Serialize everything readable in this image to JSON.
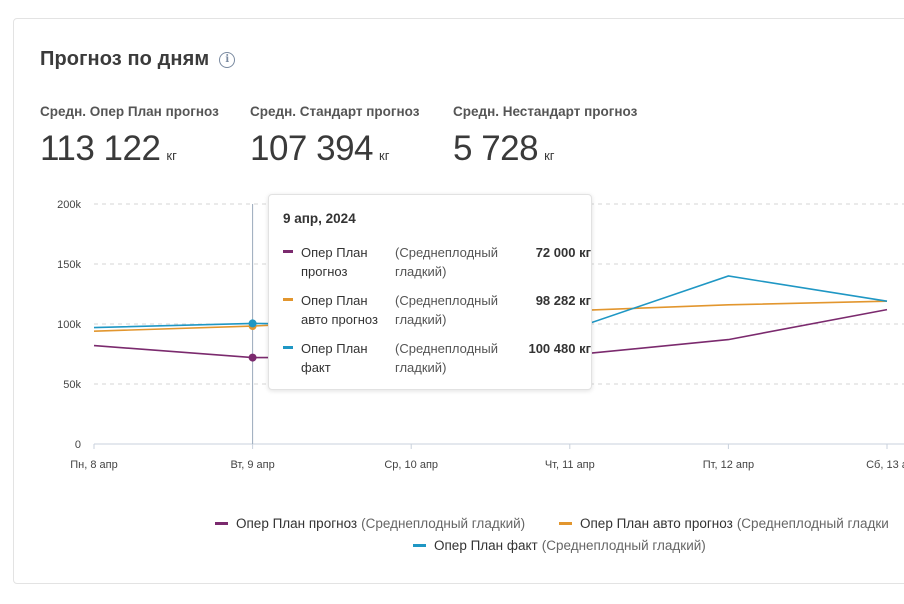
{
  "header": {
    "title": "Прогноз по дням",
    "info_icon": "info-icon"
  },
  "kpis": [
    {
      "label": "Средн. Опер План прогноз",
      "value": "113 122",
      "unit": "кг"
    },
    {
      "label": "Средн. Стандарт прогноз",
      "value": "107 394",
      "unit": "кг"
    },
    {
      "label": "Средн. Нестандарт прогноз",
      "value": "5 728",
      "unit": "кг"
    }
  ],
  "tooltip": {
    "date": "9 апр, 2024",
    "rows": [
      {
        "name": "Опер План прогноз",
        "sub": "(Среднеплодный гладкий)",
        "value": "72 000 кг",
        "color": "#7b2a6e"
      },
      {
        "name": "Опер План авто прогноз",
        "sub": "(Среднеплодный гладкий)",
        "value": "98 282 кг",
        "color": "#e2962e"
      },
      {
        "name": "Опер План факт",
        "sub": "(Среднеплодный гладкий)",
        "value": "100 480 кг",
        "color": "#1f97c4"
      }
    ]
  },
  "legend": [
    {
      "name": "Опер План прогноз",
      "sub": "(Среднеплодный гладкий)",
      "color": "#7b2a6e"
    },
    {
      "name": "Опер План авто прогноз",
      "sub": "(Среднеплодный гладки",
      "color": "#e2962e"
    },
    {
      "name": "Опер План факт",
      "sub": "(Среднеплодный гладкий)",
      "color": "#1f97c4"
    }
  ],
  "chart_data": {
    "type": "line",
    "categories": [
      "Пн, 8 апр",
      "Вт, 9 апр",
      "Ср, 10 апр",
      "Чт, 11 апр",
      "Пт, 12 апр",
      "Сб, 13 а"
    ],
    "y_ticks": [
      "0",
      "50k",
      "100k",
      "150k",
      "200k"
    ],
    "ylim": [
      0,
      200000
    ],
    "grid": true,
    "series": [
      {
        "name": "Опер План прогноз (Среднеплодный гладкий)",
        "color": "#7b2a6e",
        "values": [
          82000,
          72000,
          72000,
          74000,
          87000,
          112000
        ]
      },
      {
        "name": "Опер План авто прогноз (Среднеплодный гладкий)",
        "color": "#e2962e",
        "values": [
          94000,
          98282,
          104000,
          111000,
          116000,
          119000
        ]
      },
      {
        "name": "Опер План факт (Среднеплодный гладкий)",
        "color": "#1f97c4",
        "values": [
          97000,
          100480,
          99000,
          95000,
          140000,
          119000
        ]
      }
    ],
    "highlight_index": 1
  }
}
